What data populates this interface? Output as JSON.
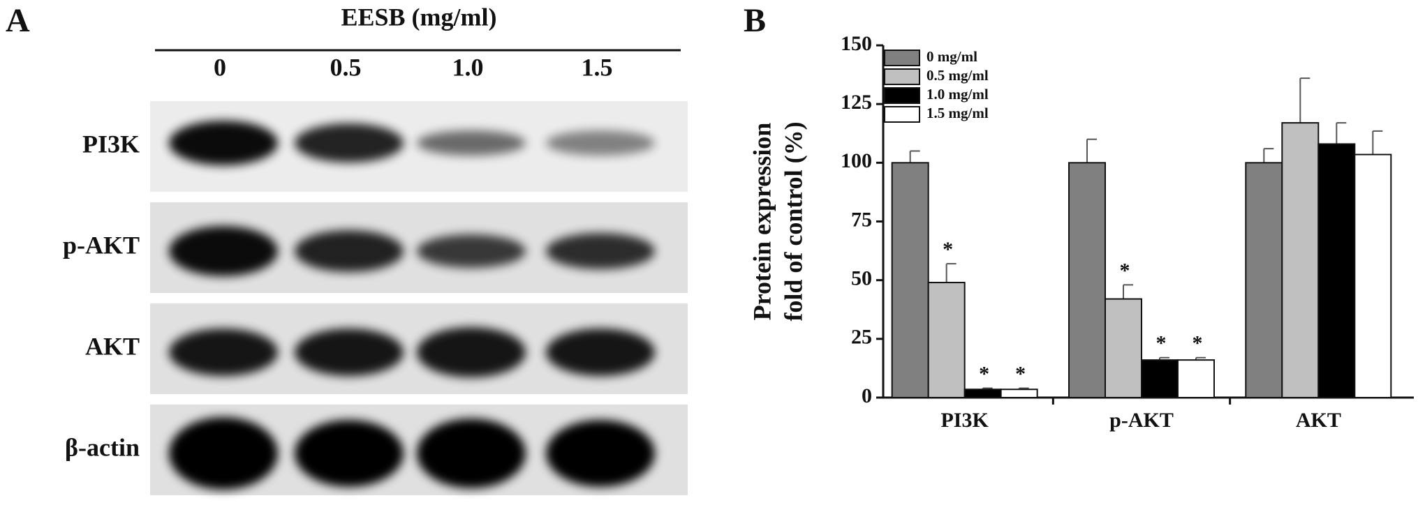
{
  "panel_a": {
    "label": "A",
    "treatment": "EESB (mg/ml)",
    "lanes": [
      "0",
      "0.5",
      "1.0",
      "1.5"
    ],
    "rows": [
      "PI3K",
      "p-AKT",
      "AKT",
      "β-actin"
    ]
  },
  "chart_data": {
    "type": "bar",
    "panel_label": "B",
    "ylabel": [
      "Protein expression",
      "fold of control (%)"
    ],
    "categories": [
      "PI3K",
      "p-AKT",
      "AKT"
    ],
    "series": [
      {
        "name": "0 mg/ml",
        "color": "#808080",
        "values": [
          100,
          100,
          100
        ],
        "errors": [
          5,
          10,
          6
        ],
        "significance": [
          null,
          null,
          null
        ]
      },
      {
        "name": "0.5 mg/ml",
        "color": "#c0c0c0",
        "values": [
          49,
          42,
          117
        ],
        "errors": [
          8,
          6,
          19
        ],
        "significance": [
          "*",
          "*",
          null
        ]
      },
      {
        "name": "1.0 mg/ml",
        "color": "#000000",
        "values": [
          3.5,
          16,
          108
        ],
        "errors": [
          0.5,
          1,
          9
        ],
        "significance": [
          "*",
          "*",
          null
        ]
      },
      {
        "name": "1.5 mg/ml",
        "color": "#ffffff",
        "values": [
          3.5,
          16,
          103.5
        ],
        "errors": [
          0.5,
          1,
          10
        ],
        "significance": [
          "*",
          "*",
          null
        ]
      }
    ],
    "ylim": [
      0,
      150
    ],
    "yticks": [
      0,
      25,
      50,
      75,
      100,
      125,
      150
    ],
    "legend": "upper-left"
  }
}
